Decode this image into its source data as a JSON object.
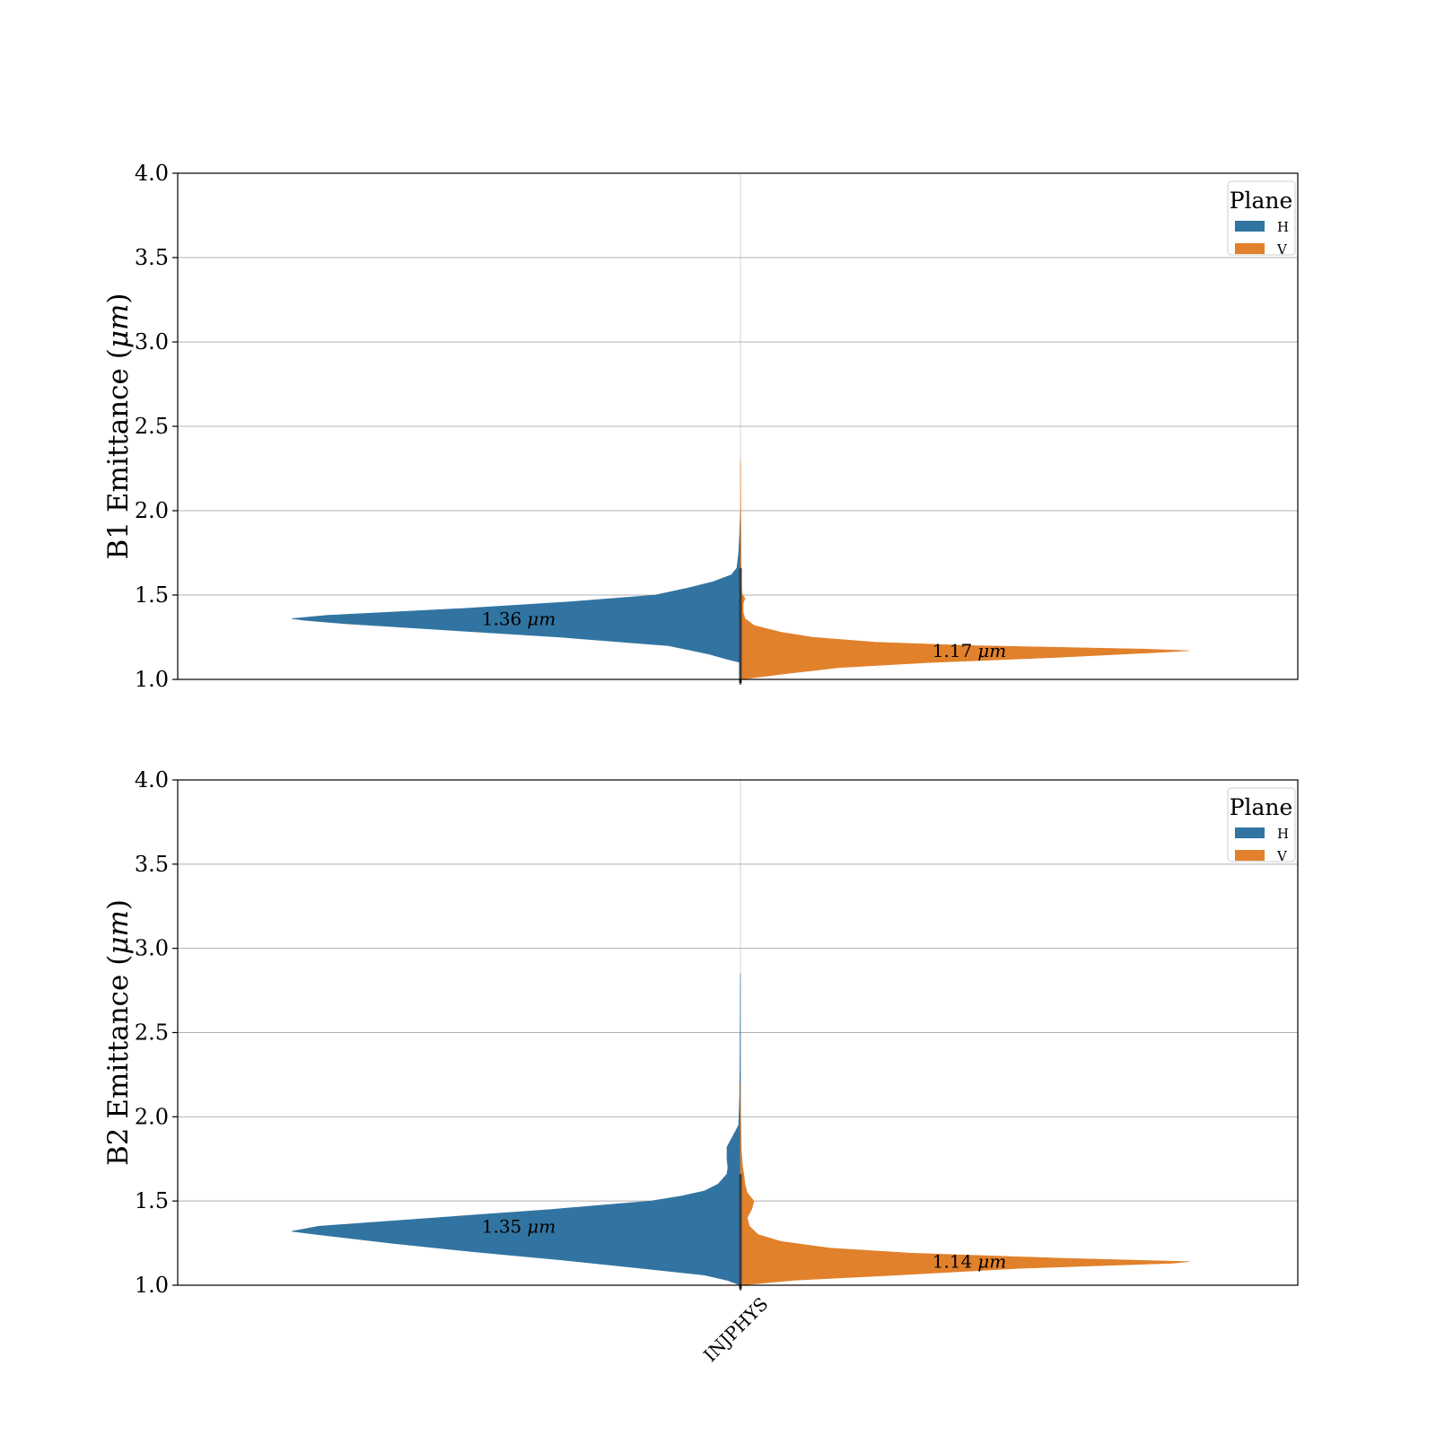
{
  "colors": {
    "H": "#3274a1",
    "V": "#e1812c",
    "grid": "#b0b0b0"
  },
  "chart_data": [
    {
      "type": "violin",
      "ylabel_main": "B1 Emittance (",
      "ylabel_unit": "μm",
      "ylabel_close": ")",
      "ylim": [
        1.0,
        4.0
      ],
      "yticks": [
        "1.0",
        "1.5",
        "2.0",
        "2.5",
        "3.0",
        "3.5",
        "4.0"
      ],
      "categories": [
        "INJPHYS"
      ],
      "legend": {
        "title": "Plane",
        "entries": [
          "H",
          "V"
        ],
        "placement": "top-right"
      },
      "grid": true,
      "series": [
        {
          "name": "H",
          "median": 1.36,
          "label_value": "1.36",
          "label_unit": "μm",
          "density": [
            [
              1.1,
              0.0
            ],
            [
              1.12,
              0.03
            ],
            [
              1.15,
              0.07
            ],
            [
              1.2,
              0.16
            ],
            [
              1.25,
              0.4
            ],
            [
              1.3,
              0.7
            ],
            [
              1.33,
              0.88
            ],
            [
              1.35,
              0.97
            ],
            [
              1.36,
              1.0
            ],
            [
              1.38,
              0.92
            ],
            [
              1.42,
              0.62
            ],
            [
              1.46,
              0.38
            ],
            [
              1.5,
              0.19
            ],
            [
              1.54,
              0.12
            ],
            [
              1.58,
              0.06
            ],
            [
              1.62,
              0.02
            ],
            [
              1.66,
              0.008
            ],
            [
              1.75,
              0.004
            ],
            [
              1.85,
              0.002
            ],
            [
              2.0,
              0.0
            ]
          ]
        },
        {
          "name": "V",
          "median": 1.17,
          "label_value": "1.17",
          "label_unit": "μm",
          "density": [
            [
              1.0,
              0.0
            ],
            [
              1.02,
              0.06
            ],
            [
              1.04,
              0.12
            ],
            [
              1.07,
              0.22
            ],
            [
              1.1,
              0.42
            ],
            [
              1.13,
              0.7
            ],
            [
              1.16,
              0.93
            ],
            [
              1.17,
              1.0
            ],
            [
              1.18,
              0.9
            ],
            [
              1.2,
              0.52
            ],
            [
              1.22,
              0.3
            ],
            [
              1.25,
              0.16
            ],
            [
              1.28,
              0.09
            ],
            [
              1.32,
              0.03
            ],
            [
              1.36,
              0.01
            ],
            [
              1.4,
              0.006
            ],
            [
              1.45,
              0.006
            ],
            [
              1.48,
              0.01
            ],
            [
              1.51,
              0.003
            ],
            [
              1.6,
              0.002
            ],
            [
              1.9,
              0.001
            ],
            [
              2.3,
              0.0
            ]
          ]
        }
      ]
    },
    {
      "type": "violin",
      "ylabel_main": "B2 Emittance (",
      "ylabel_unit": "μm",
      "ylabel_close": ")",
      "ylim": [
        1.0,
        4.0
      ],
      "yticks": [
        "1.0",
        "1.5",
        "2.0",
        "2.5",
        "3.0",
        "3.5",
        "4.0"
      ],
      "categories": [
        "INJPHYS"
      ],
      "legend": {
        "title": "Plane",
        "entries": [
          "H",
          "V"
        ],
        "placement": "top-right"
      },
      "grid": true,
      "series": [
        {
          "name": "H",
          "median": 1.35,
          "label_value": "1.35",
          "label_unit": "μm",
          "density": [
            [
              1.0,
              0.0
            ],
            [
              1.03,
              0.03
            ],
            [
              1.06,
              0.08
            ],
            [
              1.1,
              0.22
            ],
            [
              1.15,
              0.4
            ],
            [
              1.2,
              0.6
            ],
            [
              1.25,
              0.78
            ],
            [
              1.3,
              0.94
            ],
            [
              1.32,
              1.0
            ],
            [
              1.35,
              0.94
            ],
            [
              1.4,
              0.68
            ],
            [
              1.45,
              0.42
            ],
            [
              1.5,
              0.2
            ],
            [
              1.53,
              0.13
            ],
            [
              1.56,
              0.08
            ],
            [
              1.6,
              0.05
            ],
            [
              1.66,
              0.03
            ],
            [
              1.7,
              0.028
            ],
            [
              1.75,
              0.03
            ],
            [
              1.82,
              0.03
            ],
            [
              1.88,
              0.018
            ],
            [
              1.95,
              0.004
            ],
            [
              2.1,
              0.002
            ],
            [
              2.3,
              0.001
            ],
            [
              2.85,
              0.0
            ]
          ]
        },
        {
          "name": "V",
          "median": 1.14,
          "label_value": "1.14",
          "label_unit": "μm",
          "density": [
            [
              1.0,
              0.0
            ],
            [
              1.03,
              0.12
            ],
            [
              1.06,
              0.35
            ],
            [
              1.1,
              0.62
            ],
            [
              1.13,
              0.96
            ],
            [
              1.14,
              1.0
            ],
            [
              1.16,
              0.72
            ],
            [
              1.19,
              0.38
            ],
            [
              1.22,
              0.2
            ],
            [
              1.26,
              0.09
            ],
            [
              1.3,
              0.04
            ],
            [
              1.35,
              0.02
            ],
            [
              1.4,
              0.015
            ],
            [
              1.45,
              0.025
            ],
            [
              1.5,
              0.03
            ],
            [
              1.55,
              0.015
            ],
            [
              1.6,
              0.01
            ],
            [
              1.65,
              0.008
            ],
            [
              1.7,
              0.005
            ],
            [
              1.8,
              0.002
            ],
            [
              1.95,
              0.001
            ],
            [
              2.2,
              0.0
            ]
          ]
        }
      ]
    }
  ]
}
